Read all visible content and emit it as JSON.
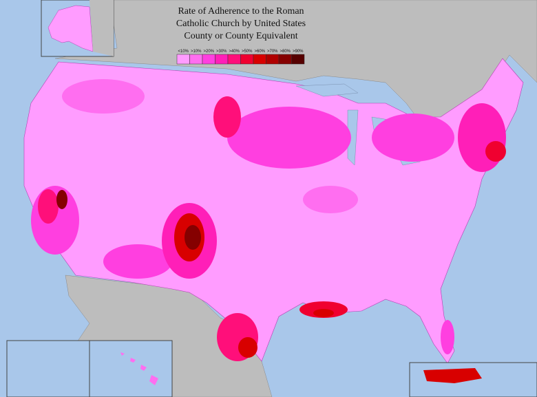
{
  "title": [
    "Rate of Adherence to the Roman",
    "Catholic Church by United States",
    "County or County Equivalent"
  ],
  "legend": [
    {
      "label": "<10%",
      "color": "#ff9cff"
    },
    {
      "label": ">10%",
      "color": "#ff6ef0"
    },
    {
      "label": ">20%",
      "color": "#ff3fe0"
    },
    {
      "label": ">30%",
      "color": "#ff1fb8"
    },
    {
      "label": ">40%",
      "color": "#ff0f7a"
    },
    {
      "label": ">50%",
      "color": "#f00030"
    },
    {
      "label": ">60%",
      "color": "#d80000"
    },
    {
      "label": ">70%",
      "color": "#b00000"
    },
    {
      "label": ">80%",
      "color": "#850000"
    },
    {
      "label": ">90%",
      "color": "#560000"
    }
  ]
}
